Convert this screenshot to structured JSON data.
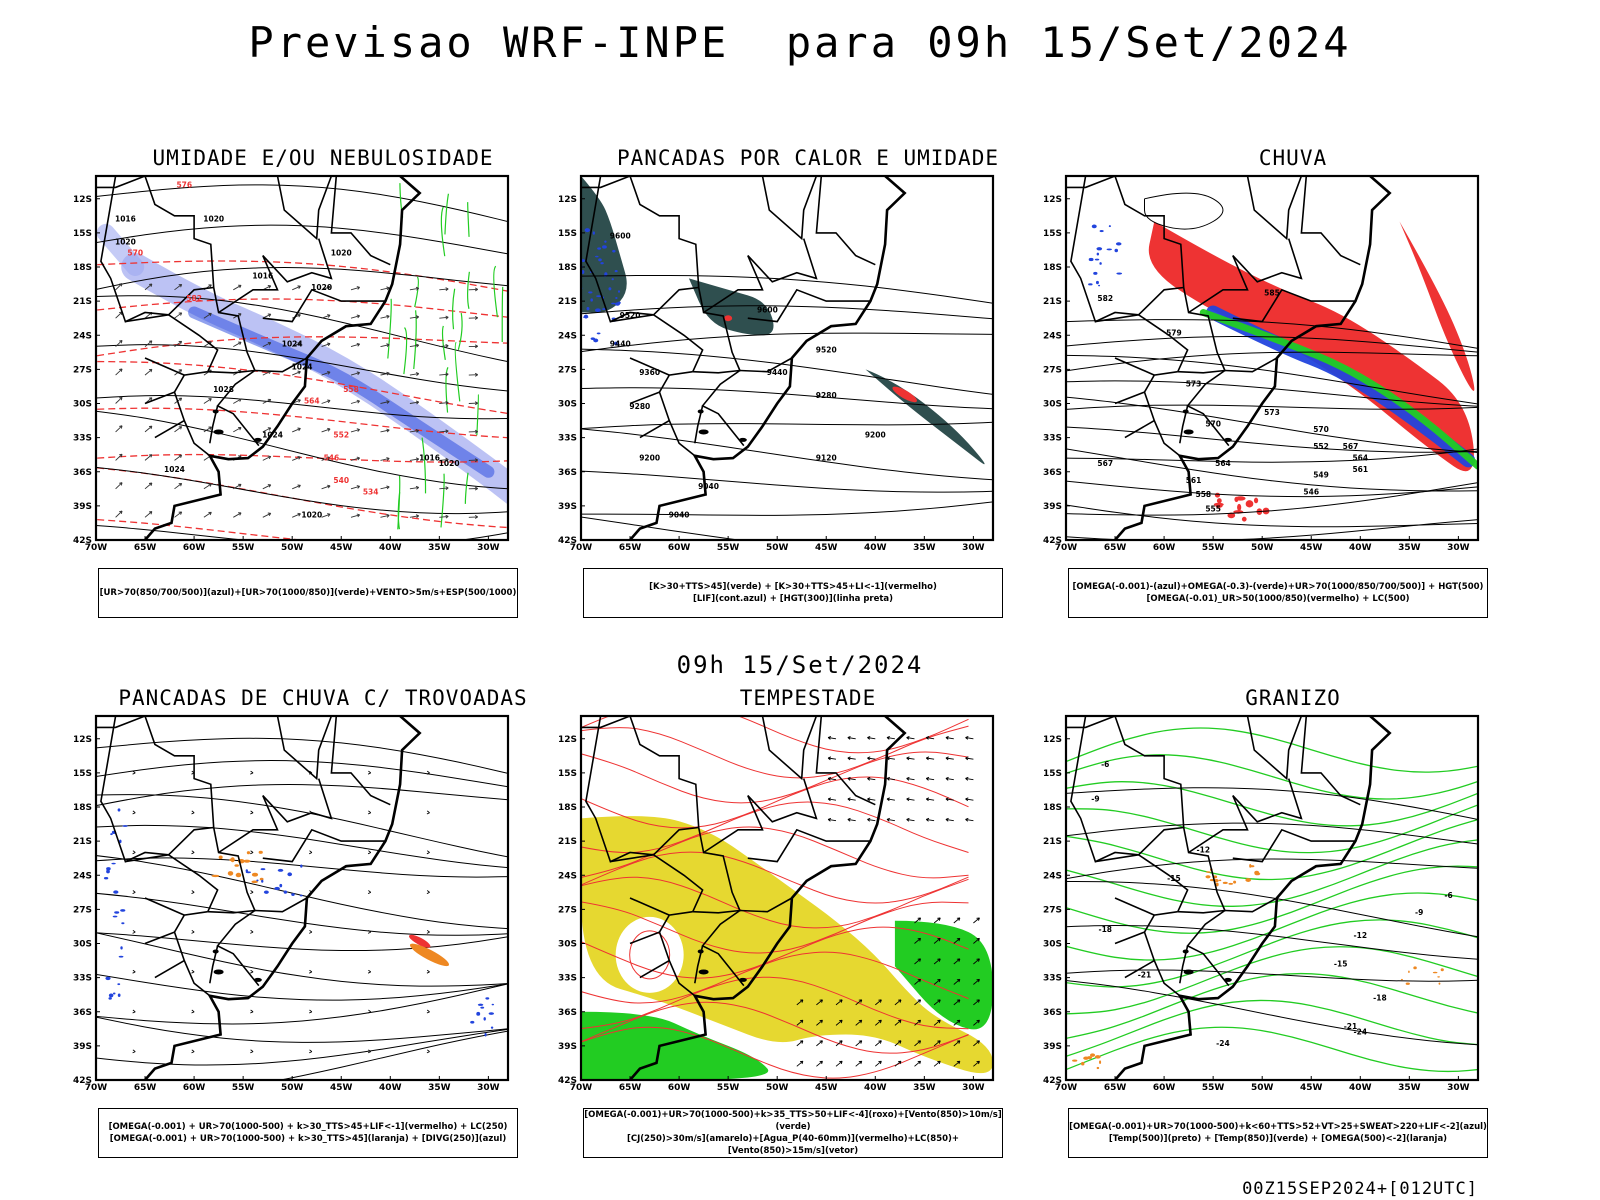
{
  "main_title": "Previsao WRF-INPE  para 09h 15/Set/2024",
  "mid_title": "09h 15/Set/2024",
  "footer": "00Z15SEP2024+[012UTC]",
  "lat_labels": [
    "12S",
    "15S",
    "18S",
    "21S",
    "24S",
    "27S",
    "30S",
    "33S",
    "36S",
    "39S",
    "42S"
  ],
  "lon_labels": [
    "70W",
    "65W",
    "60W",
    "55W",
    "50W",
    "45W",
    "40W",
    "35W",
    "30W"
  ],
  "colors": {
    "blue": "#2244dd",
    "lightblue": "#9fa8f0",
    "green": "#22cc22",
    "red": "#ee3333",
    "orange": "#ee8822",
    "yellow": "#e6d830",
    "darkteal": "#2f4f4f",
    "black": "#000000"
  },
  "panels": [
    {
      "title": "UMIDADE E/OU NEBULOSIDADE",
      "legend": [
        "[UR>70(850/700/500)](azul)+[UR>70(1000/850)](verde)+VENTO>5m/s+ESP(500/1000)"
      ],
      "contour_labels": [
        "1016",
        "1020",
        "1020",
        "1016",
        "1020",
        "1020",
        "1024",
        "1024",
        "1028",
        "1024",
        "1024",
        "1020",
        "1016",
        "1020",
        "576",
        "570",
        "582",
        "564",
        "558",
        "552",
        "546",
        "540",
        "534"
      ]
    },
    {
      "title": "PANCADAS POR CALOR E UMIDADE",
      "legend": [
        "[K>30+TTS>45](verde) + [K>30+TTS>45+LI<-1](vermelho)",
        "[LIF](cont.azul) + [HGT(300)](linha preta)"
      ],
      "contour_labels": [
        "9600",
        "9520",
        "9440",
        "9360",
        "9280",
        "9600",
        "9520",
        "9440",
        "9280",
        "9200",
        "9200",
        "9120",
        "9040",
        "9040"
      ]
    },
    {
      "title": "CHUVA",
      "legend": [
        "[OMEGA(-0.001)-(azul)+OMEGA(-0.3)-(verde)+UR>70(1000/850/700/500)] + HGT(500)",
        "[OMEGA(-0.01)_UR>50(1000/850)(vermelho) + LC(500)"
      ],
      "contour_labels": [
        "582",
        "585",
        "579",
        "573",
        "570",
        "567",
        "564",
        "561",
        "558",
        "555",
        "552",
        "549",
        "546",
        "573",
        "570",
        "567",
        "564",
        "561"
      ]
    },
    {
      "title": "PANCADAS DE CHUVA C/ TROVOADAS",
      "legend": [
        "[OMEGA(-0.001) + UR>70(1000-500) + k>30_TTS>45+LIF<-1](vermelho) + LC(250)",
        "[OMEGA(-0.001) + UR>70(1000-500) + k>30_TTS>45](laranja) + [DIVG(250)](azul)"
      ],
      "contour_labels": []
    },
    {
      "title": "TEMPESTADE",
      "legend": [
        "[OMEGA(-0.001)+UR>70(1000-500)+k>35_TTS>50+LIF<-4](roxo)+[Vento(850)>10m/s](verde)",
        "[CJ(250)>30m/s](amarelo)+[Agua_P(40-60mm)](vermelho)+LC(850)+[Vento(850)>15m/s](vetor)"
      ],
      "contour_labels": []
    },
    {
      "title": "GRANIZO",
      "legend": [
        "[OMEGA(-0.001)+UR>70(1000-500)+k<60+TTS>52+VT>25+SWEAT>220+LIF<-2](azul)",
        "[Temp(500)](preto) + [Temp(850)](verde) + [OMEGA(500)<-2](laranja)"
      ],
      "contour_labels": [
        "-6",
        "-9",
        "-12",
        "-15",
        "-18",
        "-21",
        "-24",
        "-12",
        "-15",
        "-18",
        "-21",
        "-24",
        "-9",
        "-6"
      ]
    }
  ]
}
